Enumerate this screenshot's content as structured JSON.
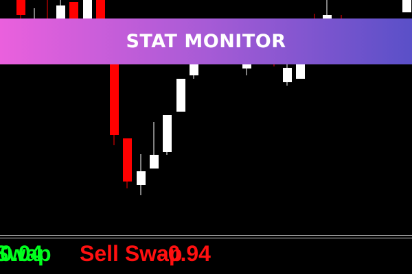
{
  "banner": {
    "title": "STAT MONITOR"
  },
  "footer": {
    "buy_label": "Swap",
    "buy_value": "0.04",
    "sell_label": "Sell Swap",
    "sell_value": "-0.94"
  }
}
